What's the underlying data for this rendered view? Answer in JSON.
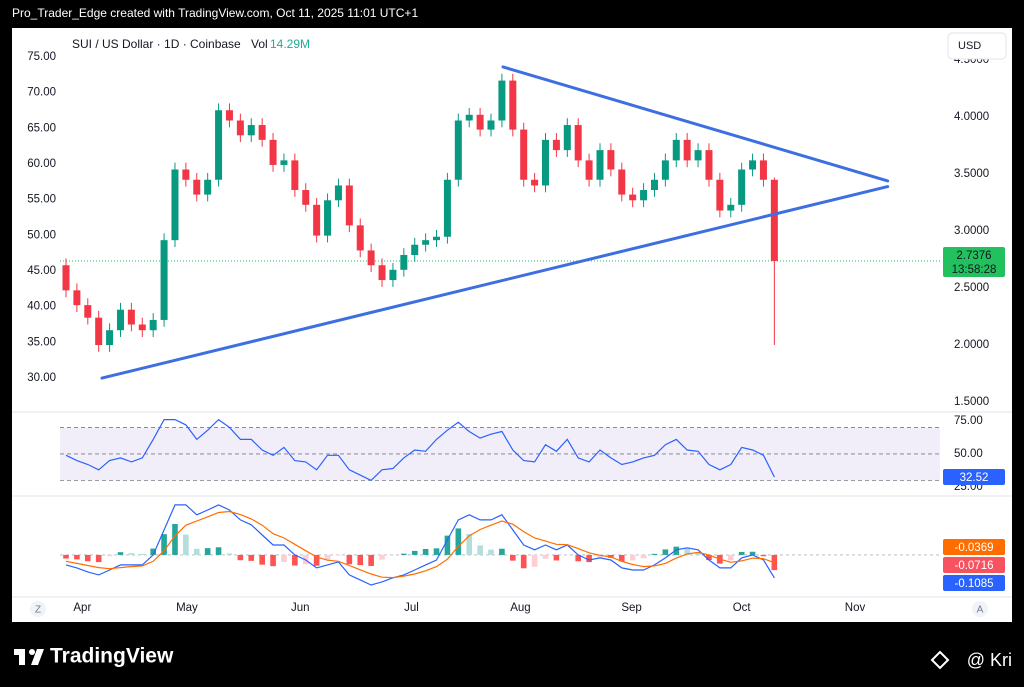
{
  "header": {
    "text": "Pro_Trader_Edge created with TradingView.com, Oct 11, 2025 11:01 UTC+1"
  },
  "footer": {
    "brand": "TradingView",
    "watermark": "@ Kri"
  },
  "scale_buttons": [
    "Z",
    "A"
  ],
  "chart_data": [
    {
      "type": "candlestick",
      "title": "SUI / US Dollar · 1D · Coinbase",
      "volume_label": "Vol",
      "volume": "14.29M",
      "currency": "USD",
      "countdown": "13:58:28",
      "up_color": "#089981",
      "down_color": "#f23645",
      "price_line_color": "#22c15e",
      "open": [
        2.7,
        2.48,
        2.35,
        2.24,
        2.0,
        2.13,
        2.31,
        2.18,
        2.13,
        2.22,
        2.92,
        3.54,
        3.45,
        3.32,
        3.45,
        4.06,
        3.97,
        3.84,
        3.93,
        3.8,
        3.58,
        3.62,
        3.36,
        3.23,
        2.96,
        3.27,
        3.4,
        3.05,
        2.83,
        2.7,
        2.57,
        2.66,
        2.79,
        2.88,
        2.92,
        2.95,
        3.45,
        3.97,
        4.02,
        3.89,
        3.97,
        4.32,
        3.89,
        3.45,
        3.4,
        3.8,
        3.71,
        3.93,
        3.62,
        3.45,
        3.71,
        3.54,
        3.32,
        3.27,
        3.36,
        3.45,
        3.62,
        3.8,
        3.62,
        3.71,
        3.45,
        3.18,
        3.23,
        3.54,
        3.62,
        3.45
      ],
      "high": [
        2.76,
        2.54,
        2.41,
        2.3,
        2.19,
        2.37,
        2.37,
        2.24,
        2.28,
        2.98,
        3.6,
        3.6,
        3.51,
        3.51,
        4.12,
        4.12,
        4.03,
        3.99,
        3.99,
        3.86,
        3.68,
        3.68,
        3.42,
        3.29,
        3.33,
        3.46,
        3.46,
        3.11,
        2.89,
        2.76,
        2.72,
        2.85,
        2.94,
        2.98,
        3.01,
        3.51,
        4.03,
        4.08,
        4.08,
        4.03,
        4.38,
        4.38,
        3.95,
        3.51,
        3.86,
        3.86,
        3.99,
        3.99,
        3.68,
        3.77,
        3.77,
        3.6,
        3.38,
        3.42,
        3.51,
        3.68,
        3.86,
        3.86,
        3.77,
        3.77,
        3.51,
        3.29,
        3.6,
        3.68,
        3.68,
        3.47
      ],
      "low": [
        2.42,
        2.29,
        2.18,
        1.94,
        1.94,
        2.07,
        2.12,
        2.07,
        2.07,
        2.16,
        2.86,
        3.39,
        3.26,
        3.26,
        3.39,
        3.91,
        3.78,
        3.78,
        3.74,
        3.52,
        3.52,
        3.3,
        3.17,
        2.9,
        2.9,
        3.21,
        2.99,
        2.77,
        2.64,
        2.51,
        2.51,
        2.6,
        2.73,
        2.82,
        2.86,
        2.89,
        3.39,
        3.91,
        3.83,
        3.83,
        3.91,
        3.83,
        3.39,
        3.34,
        3.34,
        3.65,
        3.65,
        3.56,
        3.39,
        3.39,
        3.48,
        3.26,
        3.21,
        3.21,
        3.3,
        3.39,
        3.56,
        3.56,
        3.56,
        3.39,
        3.12,
        3.12,
        3.17,
        3.48,
        3.39,
        2.0
      ],
      "close": [
        2.48,
        2.35,
        2.24,
        2.0,
        2.13,
        2.31,
        2.18,
        2.13,
        2.22,
        2.92,
        3.54,
        3.45,
        3.32,
        3.45,
        4.06,
        3.97,
        3.84,
        3.93,
        3.8,
        3.58,
        3.62,
        3.36,
        3.23,
        2.96,
        3.27,
        3.4,
        3.05,
        2.83,
        2.7,
        2.57,
        2.66,
        2.79,
        2.88,
        2.92,
        2.95,
        3.45,
        3.97,
        4.02,
        3.89,
        3.97,
        4.32,
        3.89,
        3.45,
        3.4,
        3.8,
        3.71,
        3.93,
        3.62,
        3.45,
        3.71,
        3.54,
        3.32,
        3.27,
        3.36,
        3.45,
        3.62,
        3.8,
        3.62,
        3.71,
        3.45,
        3.18,
        3.23,
        3.54,
        3.62,
        3.45,
        2.7376
      ],
      "xlim": [
        -0.55,
        80.2
      ],
      "xticks": [
        {
          "value": 1.5,
          "label": "Apr"
        },
        {
          "value": 11.1,
          "label": "May"
        },
        {
          "value": 21.5,
          "label": "Jun"
        },
        {
          "value": 31.7,
          "label": "Jul"
        },
        {
          "value": 41.7,
          "label": "Aug"
        },
        {
          "value": 51.9,
          "label": "Sep"
        },
        {
          "value": 62.0,
          "label": "Oct"
        },
        {
          "value": 72.4,
          "label": "Nov"
        }
      ],
      "ylim": [
        1.43,
        4.72
      ],
      "yticks": [
        {
          "value": 1.5,
          "label": "1.5000"
        },
        {
          "value": 2,
          "label": "2.0000"
        },
        {
          "value": 2.5,
          "label": "2.5000"
        },
        {
          "value": 3,
          "label": "3.0000"
        },
        {
          "value": 3.5,
          "label": "3.5000"
        },
        {
          "value": 4,
          "label": "4.0000"
        },
        {
          "value": 4.5,
          "label": "4.5000"
        }
      ],
      "y2lim": [
        25.51,
        78.08
      ],
      "y2ticks": [
        {
          "value": 30,
          "label": "30.00"
        },
        {
          "value": 35,
          "label": "35.00"
        },
        {
          "value": 40,
          "label": "40.00"
        },
        {
          "value": 45,
          "label": "45.00"
        },
        {
          "value": 50,
          "label": "50.00"
        },
        {
          "value": 55,
          "label": "55.00"
        },
        {
          "value": 60,
          "label": "60.00"
        },
        {
          "value": 65,
          "label": "65.00"
        },
        {
          "value": 70,
          "label": "70.00"
        },
        {
          "value": 75,
          "label": "75.00"
        }
      ],
      "trendline_color": "#3d6fe0",
      "trendlines": [
        {
          "points": [
            [
              40.1,
              4.44
            ],
            [
              75.4,
              3.44
            ]
          ]
        },
        {
          "points": [
            [
              3.3,
              1.71
            ],
            [
              75.4,
              3.39
            ]
          ]
        }
      ]
    },
    {
      "type": "rsi",
      "color": "#2962ff",
      "band_color": "#7e57c2",
      "values": [
        49,
        45,
        42,
        38,
        45,
        47,
        44,
        47,
        61,
        76,
        76,
        72,
        61,
        68,
        76,
        70,
        61,
        61,
        53,
        49,
        55,
        45,
        44,
        38,
        49,
        49,
        38,
        34,
        30,
        38,
        39,
        47,
        53,
        52,
        61,
        68,
        74,
        67,
        62,
        65,
        67,
        53,
        45,
        44,
        57,
        52,
        61,
        47,
        44,
        53,
        47,
        42,
        44,
        47,
        49,
        57,
        61,
        53,
        52,
        42,
        38,
        42,
        55,
        53,
        49,
        32.52
      ],
      "levels": [
        70,
        50,
        30
      ],
      "ylim": [
        21.2,
        79.5
      ],
      "yticks": [
        {
          "value": 25,
          "label": "25.00"
        },
        {
          "value": 50,
          "label": "50.00"
        },
        {
          "value": 75,
          "label": "75.00"
        }
      ]
    },
    {
      "type": "macd",
      "ylim": [
        -0.189,
        0.259
      ],
      "zero": 0,
      "series": [
        {
          "color": "#2962ff",
          "values": [
            -0.047,
            -0.061,
            -0.08,
            -0.094,
            -0.071,
            -0.047,
            -0.047,
            -0.047,
            0,
            0.118,
            0.236,
            0.236,
            0.189,
            0.212,
            0.236,
            0.212,
            0.165,
            0.142,
            0.094,
            0.047,
            0.047,
            0,
            -0.024,
            -0.061,
            -0.047,
            -0.033,
            -0.094,
            -0.118,
            -0.142,
            -0.127,
            -0.108,
            -0.094,
            -0.071,
            -0.047,
            -0.024,
            0.071,
            0.165,
            0.189,
            0.165,
            0.165,
            0.189,
            0.118,
            0.047,
            0.024,
            0.047,
            0.024,
            0.047,
            0,
            -0.024,
            -0.014,
            -0.024,
            -0.061,
            -0.071,
            -0.071,
            -0.047,
            -0.014,
            0.024,
            0.033,
            0.024,
            -0.024,
            -0.061,
            -0.061,
            -0.014,
            0,
            -0.024,
            -0.1085
          ]
        },
        {
          "color": "#ff6d00",
          "values": [
            -0.03,
            -0.04,
            -0.05,
            -0.06,
            -0.065,
            -0.06,
            -0.055,
            -0.052,
            -0.03,
            0.02,
            0.09,
            0.14,
            0.16,
            0.18,
            0.2,
            0.205,
            0.19,
            0.17,
            0.14,
            0.1,
            0.08,
            0.05,
            0.02,
            -0.01,
            -0.025,
            -0.03,
            -0.05,
            -0.07,
            -0.09,
            -0.105,
            -0.107,
            -0.1,
            -0.09,
            -0.075,
            -0.055,
            -0.02,
            0.04,
            0.09,
            0.12,
            0.14,
            0.16,
            0.145,
            0.11,
            0.08,
            0.065,
            0.05,
            0.048,
            0.03,
            0.01,
            -0.002,
            -0.01,
            -0.03,
            -0.045,
            -0.055,
            -0.052,
            -0.04,
            -0.015,
            0.005,
            0.012,
            0.0,
            -0.02,
            -0.035,
            -0.028,
            -0.015,
            -0.018,
            -0.0369
          ]
        }
      ],
      "histogram": {
        "colors": [
          "#26a69a",
          "#b2dfdb",
          "#ff5252",
          "#ffcdd2"
        ],
        "label_color": "#f7525f",
        "values": [
          -0.017,
          -0.021,
          -0.03,
          -0.034,
          -0.006,
          0.013,
          0.008,
          0.005,
          0.03,
          0.098,
          0.146,
          0.096,
          0.029,
          0.032,
          0.036,
          0.007,
          -0.025,
          -0.028,
          -0.046,
          -0.053,
          -0.033,
          -0.05,
          -0.044,
          -0.051,
          -0.022,
          -0.003,
          -0.044,
          -0.048,
          -0.052,
          -0.022,
          -0.001,
          0.006,
          0.019,
          0.028,
          0.031,
          0.091,
          0.125,
          0.099,
          0.045,
          0.025,
          0.029,
          -0.027,
          -0.063,
          -0.056,
          -0.018,
          -0.026,
          -0.001,
          -0.03,
          -0.034,
          -0.012,
          -0.014,
          -0.031,
          -0.026,
          -0.016,
          0.005,
          0.026,
          0.039,
          0.028,
          0.012,
          -0.024,
          -0.041,
          -0.026,
          0.014,
          0.015,
          -0.006,
          -0.0716
        ]
      }
    }
  ]
}
